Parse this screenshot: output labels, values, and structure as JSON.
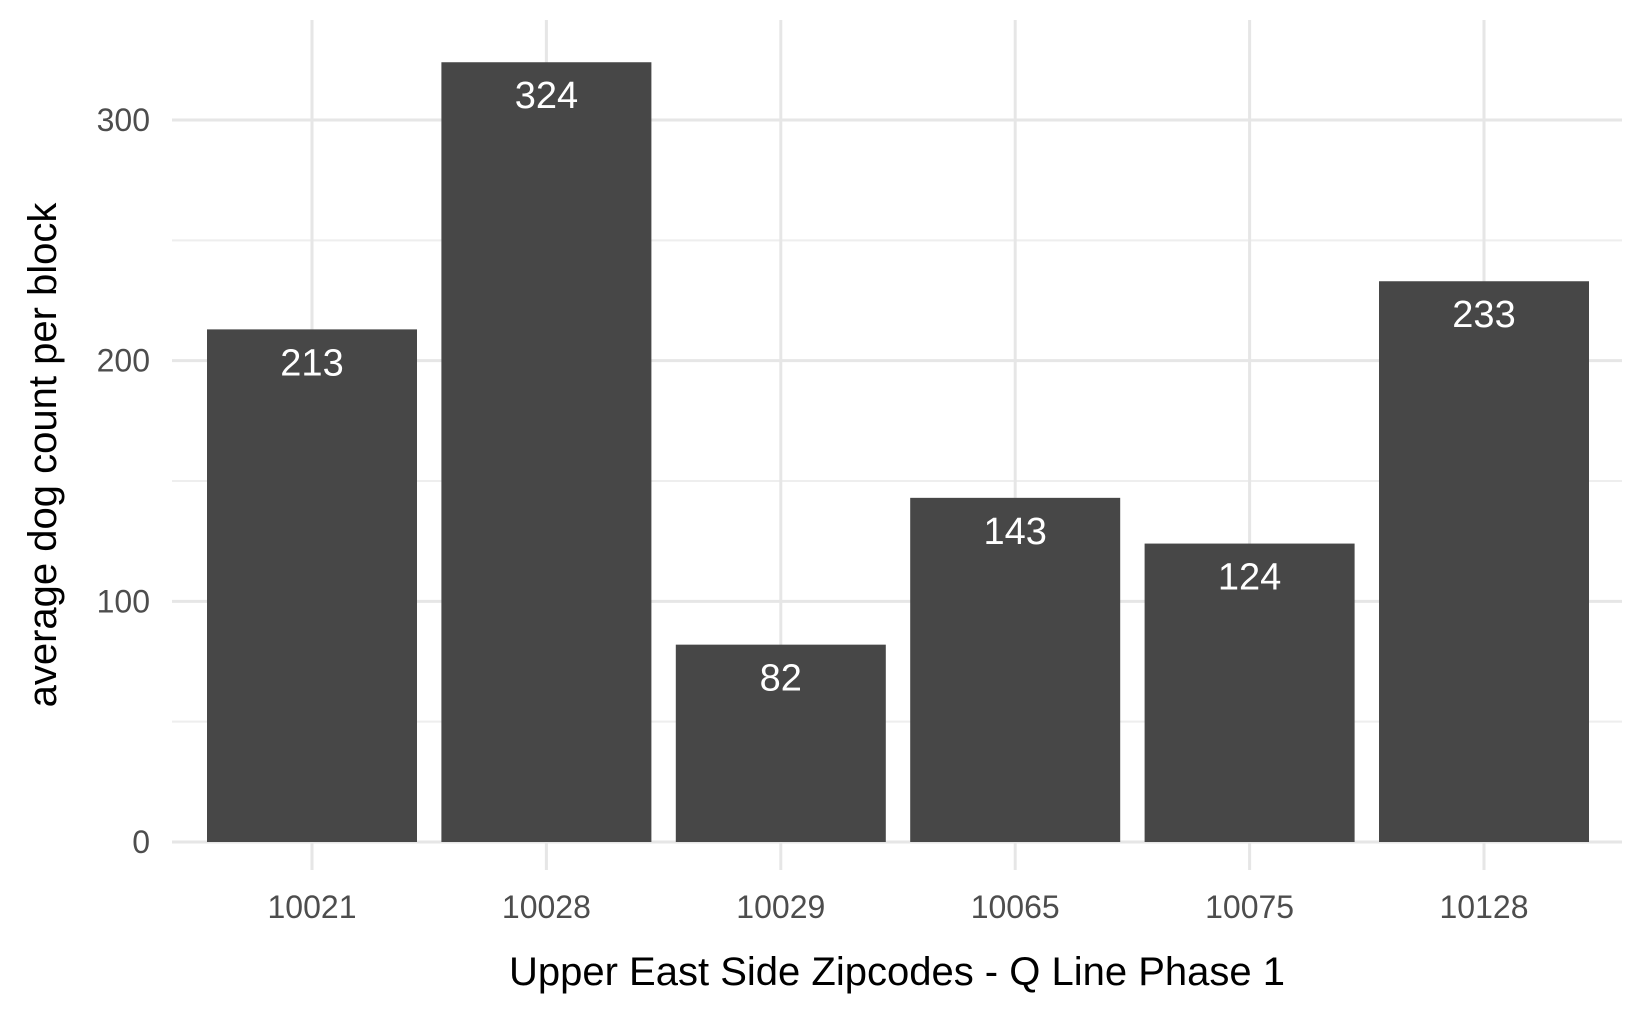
{
  "chart_data": {
    "type": "bar",
    "categories": [
      "10021",
      "10028",
      "10029",
      "10065",
      "10075",
      "10128"
    ],
    "values": [
      213,
      324,
      82,
      143,
      124,
      233
    ],
    "data_labels": [
      "213",
      "324",
      "82",
      "143",
      "124",
      "233"
    ],
    "title": "",
    "xlabel": "Upper East Side Zipcodes - Q Line Phase 1",
    "ylabel": "average dog count per block",
    "ylim": [
      0,
      340
    ],
    "y_ticks": [
      0,
      100,
      200,
      300
    ],
    "y_tick_labels": [
      "0",
      "100",
      "200",
      "300"
    ],
    "grid": true,
    "legend": "none",
    "bar_color": "#474747",
    "label_color": "#ffffff"
  }
}
